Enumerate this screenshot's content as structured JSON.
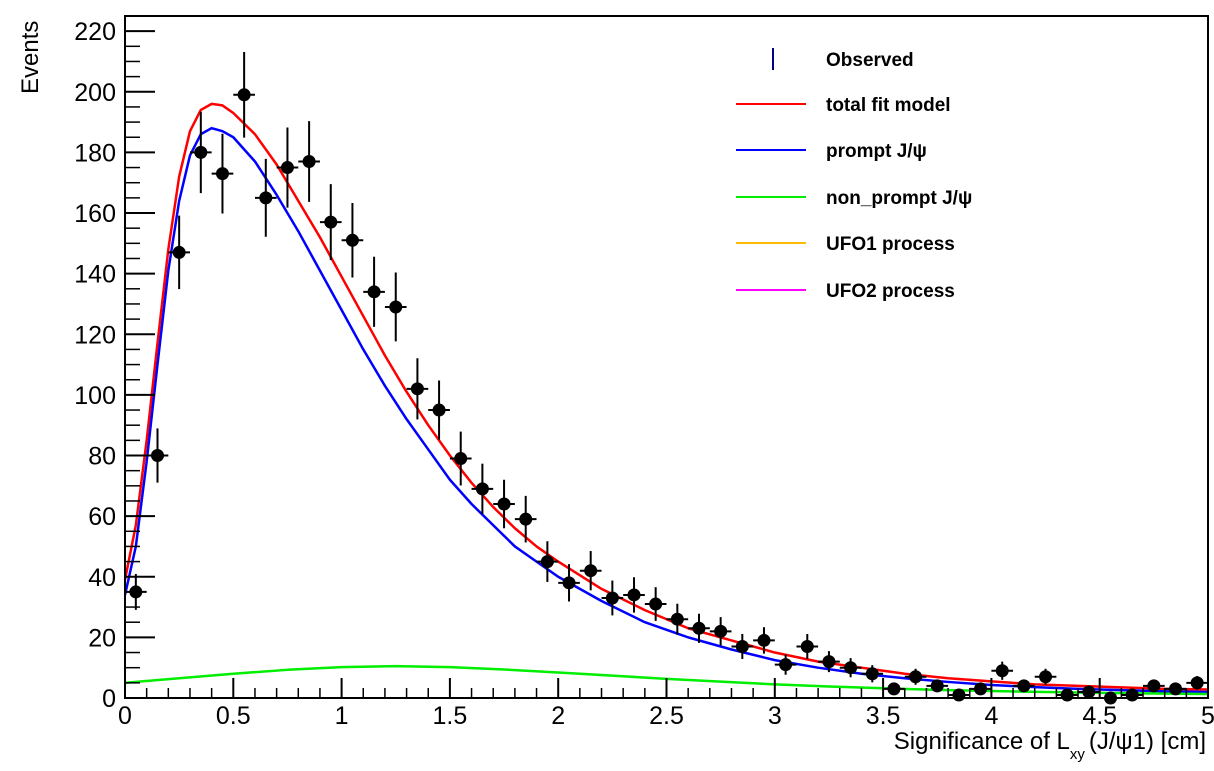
{
  "chart_data": {
    "type": "line",
    "title": "",
    "xlabel": {
      "prefix": "Significance of L",
      "subscript": "xy",
      "suffix": "(J/ψ1) [cm]"
    },
    "ylabel": "Events",
    "xlim": [
      0,
      5
    ],
    "ylim": [
      0,
      225
    ],
    "x_ticks": [
      0,
      0.5,
      1,
      1.5,
      2,
      2.5,
      3,
      3.5,
      4,
      4.5,
      5
    ],
    "x_tick_labels": [
      "0",
      "0.5",
      "1",
      "1.5",
      "2",
      "2.5",
      "3",
      "3.5",
      "4",
      "4.5",
      "5"
    ],
    "y_ticks": [
      0,
      20,
      40,
      60,
      80,
      100,
      120,
      140,
      160,
      180,
      200,
      220
    ],
    "y_tick_labels": [
      "0",
      "20",
      "40",
      "60",
      "80",
      "100",
      "120",
      "140",
      "160",
      "180",
      "200",
      "220"
    ],
    "grid": false,
    "legend_position": "top-right",
    "observed": {
      "name": "Observed",
      "color": "#000000",
      "x_err": 0.05,
      "x": [
        0.05,
        0.15,
        0.25,
        0.35,
        0.45,
        0.55,
        0.65,
        0.75,
        0.85,
        0.95,
        1.05,
        1.15,
        1.25,
        1.35,
        1.45,
        1.55,
        1.65,
        1.75,
        1.85,
        1.95,
        2.05,
        2.15,
        2.25,
        2.35,
        2.45,
        2.55,
        2.65,
        2.75,
        2.85,
        2.95,
        3.05,
        3.15,
        3.25,
        3.35,
        3.45,
        3.55,
        3.65,
        3.75,
        3.85,
        3.95,
        4.05,
        4.15,
        4.25,
        4.35,
        4.45,
        4.55,
        4.65,
        4.75,
        4.85,
        4.95
      ],
      "y": [
        35,
        80,
        147,
        180,
        173,
        199,
        165,
        175,
        177,
        157,
        151,
        134,
        129,
        102,
        95,
        79,
        69,
        64,
        59,
        45,
        38,
        42,
        33,
        34,
        31,
        26,
        23,
        22,
        17,
        19,
        11,
        17,
        12,
        10,
        8,
        3,
        7,
        4,
        1,
        3,
        9,
        4,
        7,
        1,
        2,
        0,
        1,
        4,
        3,
        5
      ]
    },
    "series": [
      {
        "name": "total fit model",
        "color": "#ff0000",
        "x": [
          0.0,
          0.05,
          0.1,
          0.15,
          0.2,
          0.25,
          0.3,
          0.35,
          0.4,
          0.45,
          0.5,
          0.6,
          0.7,
          0.8,
          0.9,
          1.0,
          1.1,
          1.2,
          1.3,
          1.4,
          1.5,
          1.6,
          1.7,
          1.8,
          1.9,
          2.0,
          2.2,
          2.4,
          2.6,
          2.8,
          3.0,
          3.2,
          3.4,
          3.6,
          3.8,
          4.0,
          4.2,
          4.4,
          4.6,
          4.8,
          5.0
        ],
        "y": [
          39,
          57,
          85,
          117,
          148,
          172,
          187,
          194,
          196,
          195.5,
          193,
          186,
          176,
          164,
          152,
          139,
          126,
          113,
          101,
          90,
          80,
          71,
          63,
          56,
          50,
          45,
          36,
          29,
          23,
          19,
          15,
          12,
          10,
          8,
          6.5,
          5.5,
          4.5,
          4,
          3.5,
          3,
          2.8
        ]
      },
      {
        "name": "prompt J/ψ",
        "color": "#0000ff",
        "x": [
          0.0,
          0.05,
          0.1,
          0.15,
          0.2,
          0.25,
          0.3,
          0.35,
          0.4,
          0.45,
          0.5,
          0.6,
          0.7,
          0.8,
          0.9,
          1.0,
          1.1,
          1.2,
          1.3,
          1.4,
          1.5,
          1.6,
          1.7,
          1.8,
          1.9,
          2.0,
          2.2,
          2.4,
          2.6,
          2.8,
          3.0,
          3.2,
          3.4,
          3.6,
          3.8,
          4.0,
          4.2,
          4.4,
          4.6,
          4.8,
          5.0
        ],
        "y": [
          34,
          50,
          78,
          110,
          141,
          164,
          179,
          186,
          188,
          187,
          185,
          177,
          166,
          154,
          141,
          128,
          115,
          103,
          92,
          82,
          72,
          64,
          57,
          50,
          45,
          40,
          32,
          25,
          20,
          16,
          12.5,
          10,
          8,
          6.5,
          5.3,
          4.3,
          3.6,
          3,
          2.6,
          2.2,
          2
        ]
      },
      {
        "name": "non_prompt J/ψ",
        "color": "#00ee00",
        "x": [
          0.0,
          0.25,
          0.5,
          0.75,
          1.0,
          1.25,
          1.5,
          1.75,
          2.0,
          2.25,
          2.5,
          2.75,
          3.0,
          3.25,
          3.5,
          3.75,
          4.0,
          4.25,
          4.5,
          4.75,
          5.0
        ],
        "y": [
          5,
          6.5,
          8,
          9.3,
          10.2,
          10.5,
          10.2,
          9.4,
          8.4,
          7.4,
          6.3,
          5.4,
          4.5,
          3.8,
          3.2,
          2.7,
          2.3,
          2,
          1.7,
          1.5,
          1.3
        ]
      },
      {
        "name": "UFO1 process",
        "color": "#ffbb00",
        "x": [],
        "y": []
      },
      {
        "name": "UFO2 process",
        "color": "#ff00ff",
        "x": [],
        "y": []
      }
    ]
  }
}
